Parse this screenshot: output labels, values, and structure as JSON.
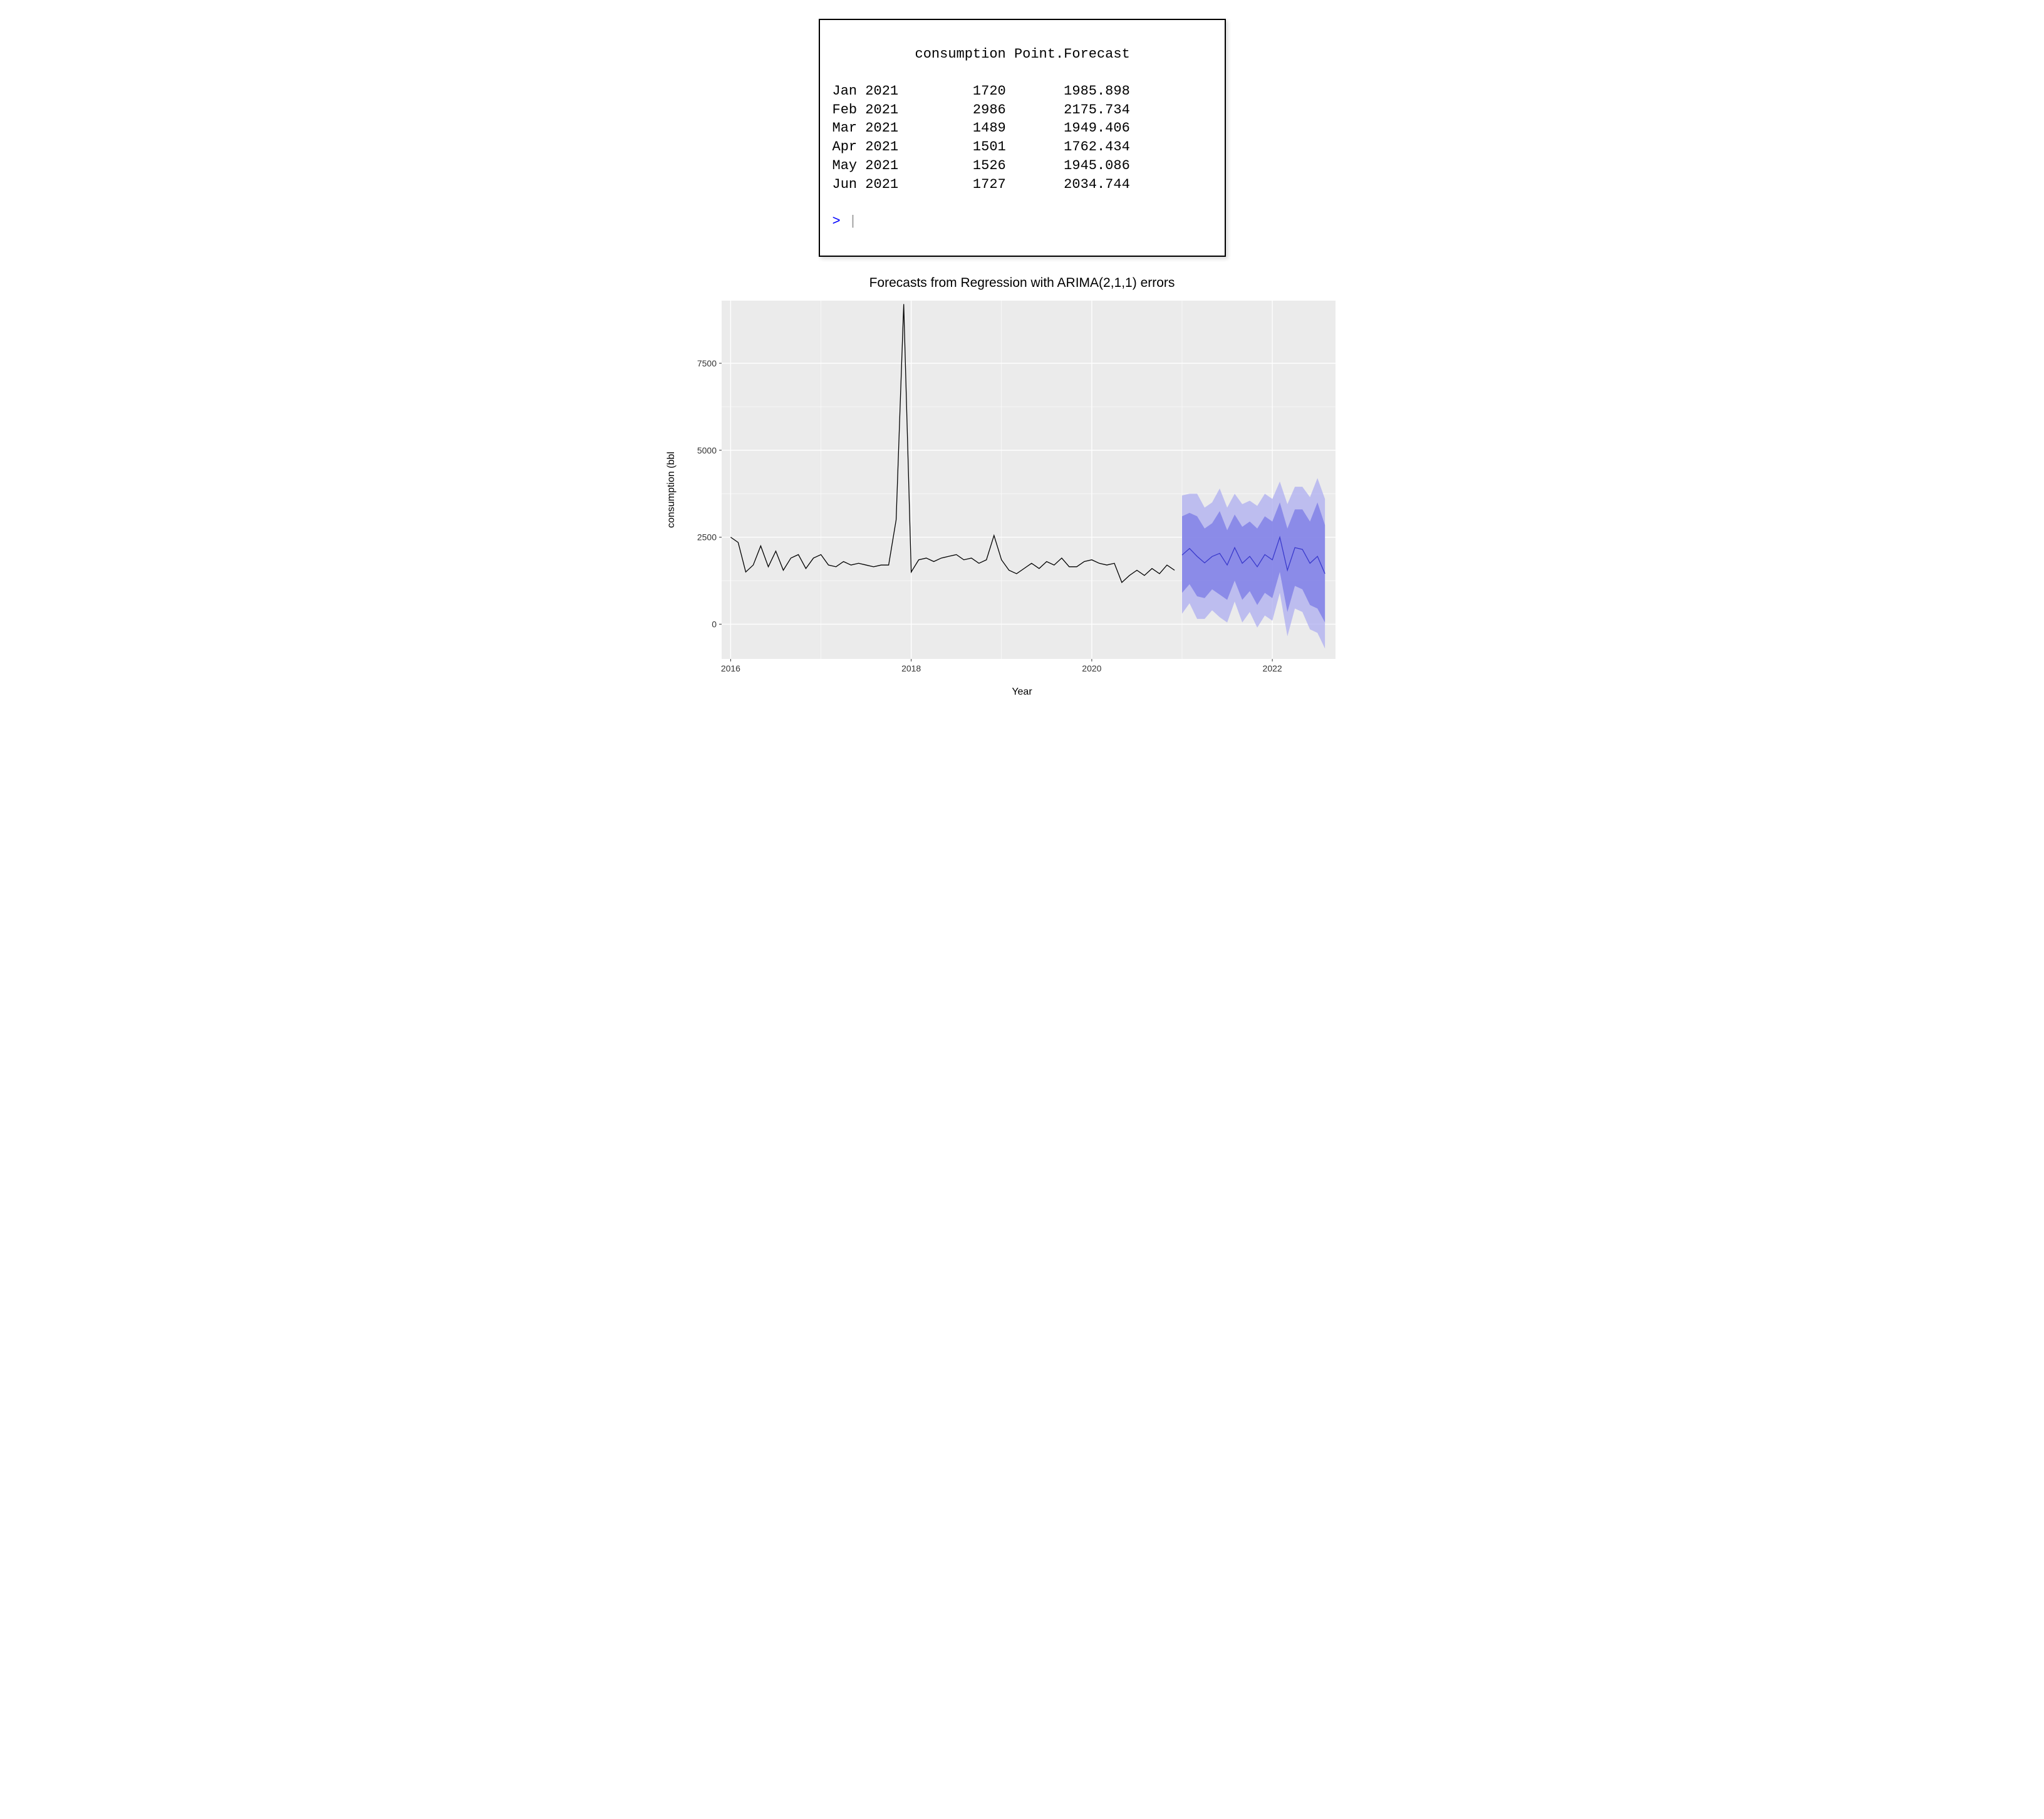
{
  "console": {
    "header": "          consumption Point.Forecast",
    "rows": [
      "Jan 2021         1720       1985.898",
      "Feb 2021         2986       2175.734",
      "Mar 2021         1489       1949.406",
      "Apr 2021         1501       1762.434",
      "May 2021         1526       1945.086",
      "Jun 2021         1727       2034.744"
    ],
    "prompt": "> "
  },
  "chart": {
    "type": "line_forecast",
    "title": "Forecasts from Regression with ARIMA(2,1,1) errors",
    "x_label": "Year",
    "y_label": "consumption (bbl",
    "title_fontsize": 21,
    "label_fontsize": 16,
    "tick_fontsize": 14,
    "panel_bg": "#ebebeb",
    "grid_color": "#ffffff",
    "plot_bg": "#ffffff",
    "line_color": "#000000",
    "forecast_line_color": "#3a3acc",
    "ribbon80_color": "#7b7be6",
    "ribbon95_color": "#adadf0",
    "line_width": 1.3,
    "forecast_line_width": 1.3,
    "xlim": [
      2015.9,
      2022.7
    ],
    "ylim": [
      -1000,
      9300
    ],
    "x_ticks": [
      2016,
      2018,
      2020,
      2022
    ],
    "y_ticks": [
      0,
      2500,
      5000,
      7500
    ],
    "observed": {
      "x": [
        2016.0,
        2016.083,
        2016.167,
        2016.25,
        2016.333,
        2016.417,
        2016.5,
        2016.583,
        2016.667,
        2016.75,
        2016.833,
        2016.917,
        2017.0,
        2017.083,
        2017.167,
        2017.25,
        2017.333,
        2017.417,
        2017.5,
        2017.583,
        2017.667,
        2017.75,
        2017.833,
        2017.917,
        2018.0,
        2018.083,
        2018.167,
        2018.25,
        2018.333,
        2018.417,
        2018.5,
        2018.583,
        2018.667,
        2018.75,
        2018.833,
        2018.917,
        2019.0,
        2019.083,
        2019.167,
        2019.25,
        2019.333,
        2019.417,
        2019.5,
        2019.583,
        2019.667,
        2019.75,
        2019.833,
        2019.917,
        2020.0,
        2020.083,
        2020.167,
        2020.25,
        2020.333,
        2020.417,
        2020.5,
        2020.583,
        2020.667,
        2020.75,
        2020.833,
        2020.917
      ],
      "y": [
        2500,
        2350,
        1500,
        1700,
        2250,
        1650,
        2100,
        1550,
        1900,
        2000,
        1600,
        1900,
        2000,
        1700,
        1650,
        1800,
        1700,
        1750,
        1700,
        1650,
        1700,
        1700,
        3000,
        9200,
        1500,
        1850,
        1900,
        1800,
        1900,
        1950,
        2000,
        1850,
        1900,
        1750,
        1850,
        2550,
        1850,
        1550,
        1450,
        1600,
        1750,
        1600,
        1800,
        1700,
        1900,
        1650,
        1650,
        1800,
        1850,
        1750,
        1700,
        1750,
        1200,
        1400,
        1550,
        1400,
        1600,
        1450,
        1700,
        1550
      ]
    },
    "forecast": {
      "x": [
        2021.0,
        2021.083,
        2021.167,
        2021.25,
        2021.333,
        2021.417,
        2021.5,
        2021.583,
        2021.667,
        2021.75,
        2021.833,
        2021.917,
        2022.0,
        2022.083,
        2022.167,
        2022.25,
        2022.333,
        2022.417,
        2022.5,
        2022.583
      ],
      "mean": [
        1986,
        2176,
        1949,
        1762,
        1945,
        2035,
        1700,
        2200,
        1750,
        1950,
        1650,
        2000,
        1850,
        2500,
        1550,
        2200,
        2150,
        1750,
        1950,
        1450
      ],
      "lo80": [
        900,
        1150,
        800,
        750,
        1000,
        850,
        700,
        1250,
        700,
        950,
        550,
        900,
        750,
        1500,
        350,
        1100,
        1000,
        550,
        450,
        50
      ],
      "hi80": [
        3100,
        3200,
        3100,
        2750,
        2900,
        3250,
        2700,
        3150,
        2800,
        2950,
        2750,
        3100,
        2950,
        3500,
        2750,
        3300,
        3300,
        2950,
        3500,
        2850
      ],
      "lo95": [
        300,
        600,
        150,
        150,
        400,
        200,
        50,
        650,
        50,
        350,
        -100,
        250,
        100,
        900,
        -350,
        450,
        350,
        -150,
        -250,
        -700
      ],
      "hi95": [
        3700,
        3750,
        3750,
        3350,
        3500,
        3900,
        3350,
        3750,
        3450,
        3550,
        3400,
        3750,
        3600,
        4100,
        3450,
        3950,
        3950,
        3650,
        4200,
        3600
      ]
    }
  }
}
